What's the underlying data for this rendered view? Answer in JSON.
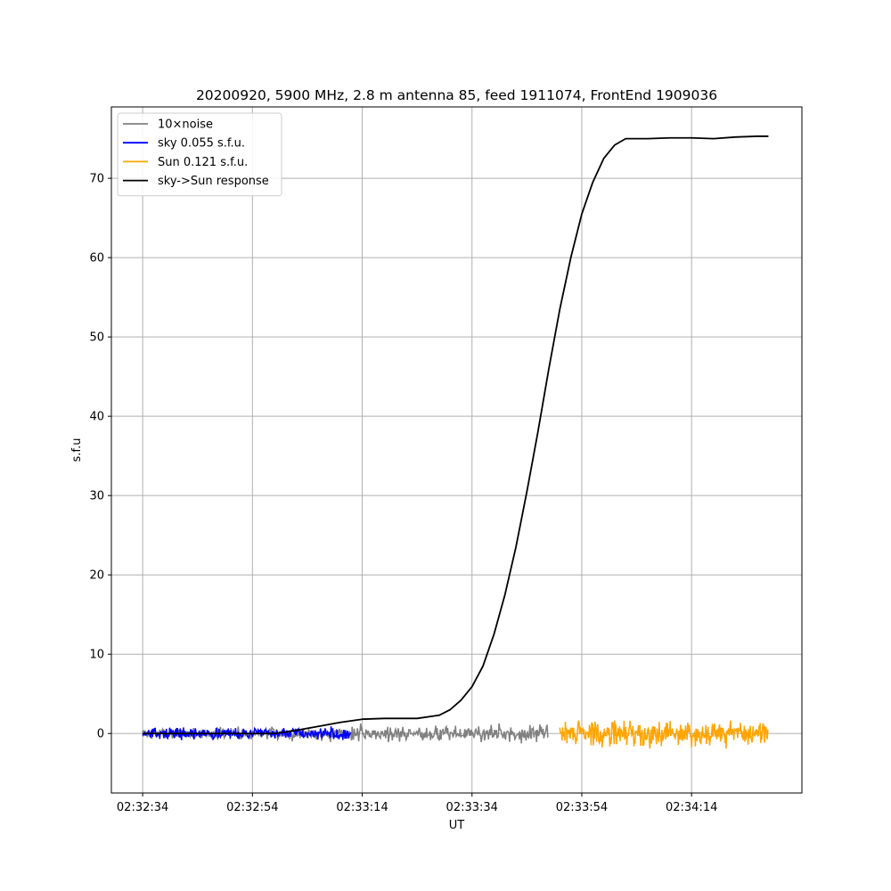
{
  "chart_data": {
    "type": "line",
    "title": "20200920, 5900 MHz, 2.8 m antenna 85, feed 1911074, FrontEnd 1909036",
    "xlabel": "UT",
    "ylabel": "s.f.u",
    "x_unit": "seconds UT",
    "xlim": [
      "02:32:28.3",
      "02:34:34.1"
    ],
    "ylim": [
      -7.5,
      79
    ],
    "xticks": [
      "02:32:34",
      "02:32:54",
      "02:33:14",
      "02:33:34",
      "02:33:54",
      "02:34:14"
    ],
    "yticks": [
      0,
      10,
      20,
      30,
      40,
      50,
      60,
      70
    ],
    "grid": true,
    "legend_position": "upper left",
    "series": [
      {
        "name": "10×noise",
        "color": "#808080",
        "x": [
          "02:32:34",
          "02:33:48"
        ],
        "noise_amplitude": [
          1.0,
          1.7
        ],
        "description_level": "noise about 0"
      },
      {
        "name": "sky 0.055 s.f.u.",
        "color": "#0000ff",
        "x": [
          "02:32:34",
          "02:33:12"
        ],
        "noise_amplitude": 1.1
      },
      {
        "name": "Sun 0.121 s.f.u.",
        "color": "#ffa500",
        "x": [
          "02:33:50",
          "02:34:28"
        ],
        "noise_amplitude": 2.4
      },
      {
        "name": "sky->Sun response",
        "color": "#000000",
        "points": [
          [
            "02:32:34",
            0.0
          ],
          [
            "02:32:58",
            0.0
          ],
          [
            "02:33:02",
            0.4
          ],
          [
            "02:33:06",
            0.9
          ],
          [
            "02:33:10",
            1.4
          ],
          [
            "02:33:14",
            1.8
          ],
          [
            "02:33:18",
            1.9
          ],
          [
            "02:33:24",
            1.9
          ],
          [
            "02:33:28",
            2.3
          ],
          [
            "02:33:30",
            3.0
          ],
          [
            "02:33:32",
            4.2
          ],
          [
            "02:33:34",
            5.9
          ],
          [
            "02:33:36",
            8.5
          ],
          [
            "02:33:38",
            12.5
          ],
          [
            "02:33:40",
            17.5
          ],
          [
            "02:33:42",
            23.5
          ],
          [
            "02:33:44",
            30.5
          ],
          [
            "02:33:46",
            38.0
          ],
          [
            "02:33:48",
            46.0
          ],
          [
            "02:33:50",
            53.5
          ],
          [
            "02:33:52",
            60.0
          ],
          [
            "02:33:54",
            65.5
          ],
          [
            "02:33:56",
            69.5
          ],
          [
            "02:33:58",
            72.5
          ],
          [
            "02:34:00",
            74.2
          ],
          [
            "02:34:02",
            75.0
          ],
          [
            "02:34:06",
            75.0
          ],
          [
            "02:34:10",
            75.1
          ],
          [
            "02:34:14",
            75.1
          ],
          [
            "02:34:18",
            75.0
          ],
          [
            "02:34:22",
            75.2
          ],
          [
            "02:34:26",
            75.3
          ],
          [
            "02:34:28",
            75.3
          ]
        ]
      }
    ]
  }
}
